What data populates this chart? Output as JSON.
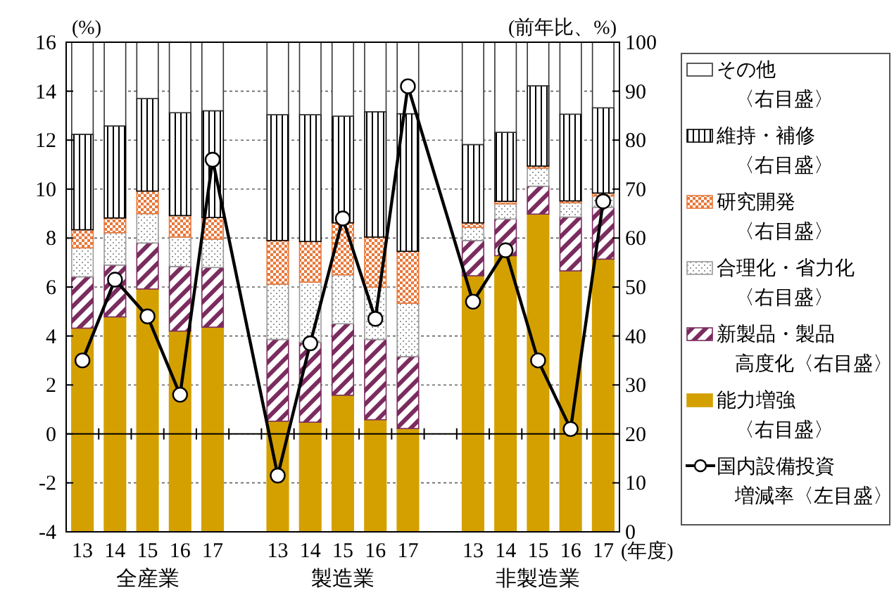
{
  "chart_data": {
    "type": "bar",
    "stacked": true,
    "ylabel": "(%)",
    "y2label": "(前年比、%)",
    "xlabel": "(年度)",
    "categories": [
      "13",
      "14",
      "15",
      "16",
      "17",
      null,
      "13",
      "14",
      "15",
      "16",
      "17",
      null,
      "13",
      "14",
      "15",
      "16",
      "17"
    ],
    "annotations": [
      "全産業",
      "製造業",
      "非製造業"
    ],
    "ylim": [
      -4,
      16
    ],
    "yticks": [
      -4,
      -2,
      0,
      2,
      4,
      6,
      8,
      10,
      12,
      14,
      16
    ],
    "y2lim": [
      0,
      100
    ],
    "y2ticks": [
      0,
      10,
      20,
      30,
      40,
      50,
      60,
      70,
      80,
      90,
      100
    ],
    "grid": "y",
    "legend": "right",
    "marker": "circle",
    "series": [
      {
        "name": "能力増強〈右目盛〉",
        "color": "#d4a000",
        "axis": "y2",
        "values": [
          41.6,
          43.9,
          49.6,
          41.0,
          41.8,
          null,
          22.6,
          22.4,
          27.9,
          22.9,
          21.1,
          null,
          52.3,
          56.4,
          64.9,
          53.3,
          55.7
        ]
      },
      {
        "name": "新製品・製品高度化〈右目盛〉",
        "color": "#7b2c5e",
        "axis": "y2",
        "values": [
          10.5,
          10.6,
          9.4,
          13.2,
          12.2,
          null,
          16.7,
          16.3,
          14.6,
          16.4,
          14.7,
          null,
          7.2,
          7.5,
          5.7,
          11.0,
          10.6
        ]
      },
      {
        "name": "合理化・省力化〈右目盛〉",
        "color": "#9a9a9a",
        "axis": "y2",
        "values": [
          5.9,
          6.6,
          6.0,
          6.0,
          5.8,
          null,
          11.3,
          12.3,
          10.0,
          10.7,
          10.9,
          null,
          2.7,
          3.1,
          3.7,
          2.9,
          2.3
        ]
      },
      {
        "name": "研究開発〈右目盛〉",
        "color": "#e8783a",
        "axis": "y2",
        "values": [
          3.7,
          3.0,
          4.6,
          4.4,
          4.4,
          null,
          8.9,
          8.3,
          10.6,
          10.2,
          10.6,
          null,
          0.9,
          0.5,
          0.4,
          0.4,
          0.6
        ]
      },
      {
        "name": "維持・補修〈右目盛〉",
        "color": "#000000",
        "axis": "y2",
        "values": [
          19.5,
          18.8,
          18.9,
          21.0,
          21.8,
          null,
          25.7,
          25.9,
          21.8,
          25.6,
          28.1,
          null,
          16.0,
          14.1,
          16.4,
          17.7,
          17.4
        ]
      },
      {
        "name": "その他〈右目盛〉",
        "color": "#ffffff",
        "axis": "y2",
        "values": [
          18.8,
          17.1,
          11.5,
          14.4,
          14.0,
          null,
          14.8,
          14.8,
          15.1,
          14.2,
          14.6,
          null,
          20.9,
          18.4,
          8.9,
          14.7,
          13.4
        ]
      },
      {
        "name": "国内設備投資増減率〈左目盛〉",
        "type": "line",
        "color": "#000000",
        "axis": "y",
        "values": [
          3.0,
          6.3,
          4.8,
          1.6,
          11.2,
          null,
          -1.7,
          3.7,
          8.8,
          4.7,
          14.2,
          null,
          5.4,
          7.5,
          3.0,
          0.2,
          9.5
        ]
      }
    ]
  }
}
